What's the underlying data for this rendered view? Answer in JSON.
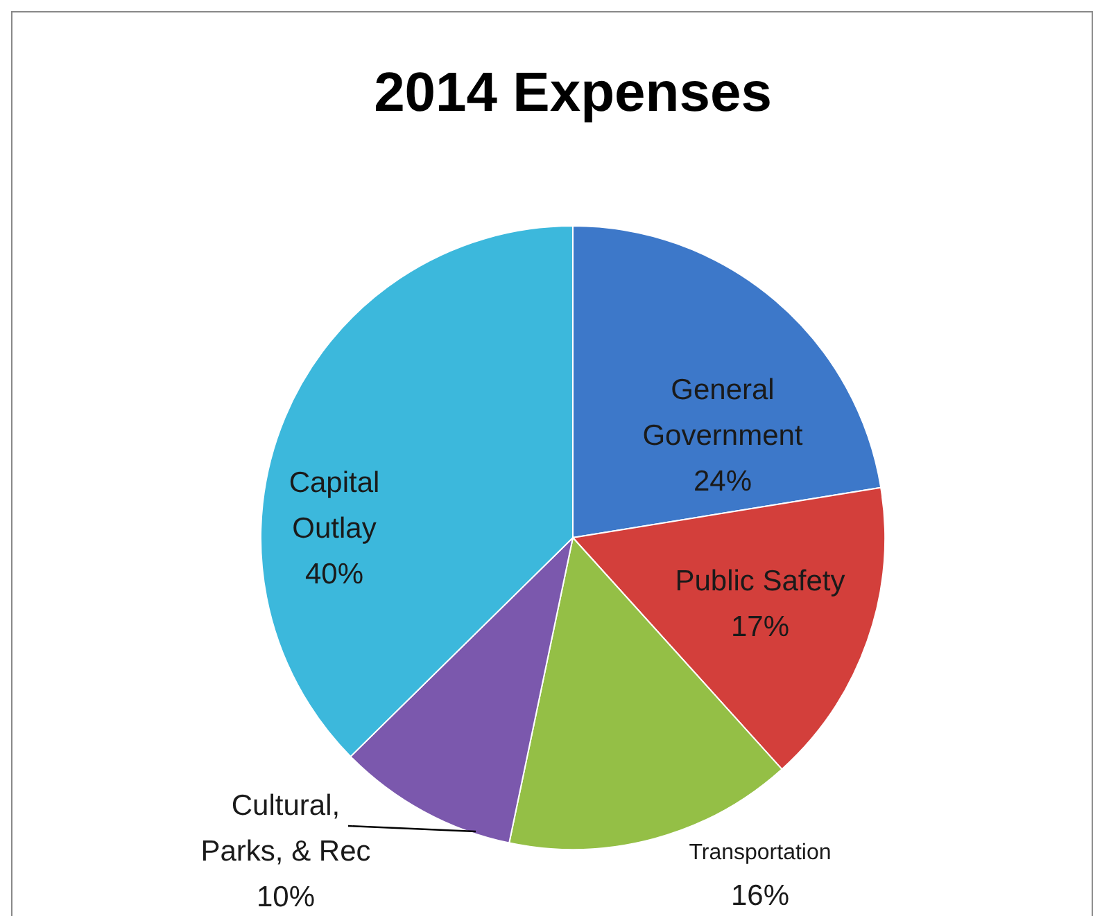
{
  "chart_data": {
    "type": "pie",
    "title": "2014 Expenses",
    "categories": [
      "General Government",
      "Public Safety",
      "Transportation",
      "Cultural, Parks, & Rec",
      "Capital Outlay"
    ],
    "values": [
      24,
      17,
      16,
      10,
      40
    ],
    "colors": [
      "#3d78c9",
      "#d33f3b",
      "#94bf46",
      "#7b58ad",
      "#3cb8dc"
    ],
    "value_labels": [
      "24%",
      "17%",
      "16%",
      "10%",
      "40%"
    ],
    "data_labels": true
  }
}
